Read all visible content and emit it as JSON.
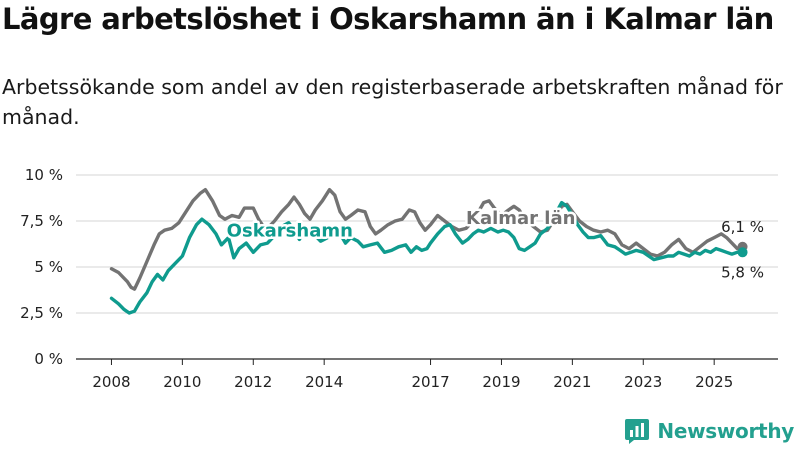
{
  "header": {
    "title": "Lägre arbetslöshet i Oskarshamn än i Kalmar län",
    "subtitle": "Arbetssökande som andel av den registerbaserade arbetskraften månad för månad."
  },
  "brand": {
    "name": "Newsworthy",
    "icon": "bar-chart-icon",
    "color": "#23a08f"
  },
  "chart_data": {
    "type": "line",
    "title": "Lägre arbetslöshet i Oskarshamn än i Kalmar län",
    "subtitle": "Arbetssökande som andel av den registerbaserade arbetskraften månad för månad.",
    "xlabel": "",
    "ylabel": "",
    "ylim": [
      0,
      10
    ],
    "xlim": [
      2007.0,
      2026.8
    ],
    "yticks": [
      0,
      2.5,
      5,
      7.5,
      10
    ],
    "ytick_labels": [
      "0 %",
      "2,5 %",
      "5 %",
      "7,5 %",
      "10 %"
    ],
    "xticks": [
      2008,
      2010,
      2012,
      2014,
      2017,
      2019,
      2021,
      2023,
      2025
    ],
    "xtick_labels": [
      "2008",
      "2010",
      "2012",
      "2014",
      "2017",
      "2019",
      "2021",
      "2023",
      "2025"
    ],
    "grid": true,
    "series": [
      {
        "name": "Kalmar län",
        "color": "#737373",
        "end_label": "6,1 %",
        "points": [
          [
            2008.0,
            4.9
          ],
          [
            2008.2,
            4.7
          ],
          [
            2008.45,
            4.2
          ],
          [
            2008.55,
            3.9
          ],
          [
            2008.65,
            3.8
          ],
          [
            2008.8,
            4.4
          ],
          [
            2009.0,
            5.3
          ],
          [
            2009.2,
            6.2
          ],
          [
            2009.35,
            6.8
          ],
          [
            2009.5,
            7.0
          ],
          [
            2009.7,
            7.1
          ],
          [
            2009.9,
            7.4
          ],
          [
            2010.1,
            8.0
          ],
          [
            2010.3,
            8.6
          ],
          [
            2010.5,
            9.0
          ],
          [
            2010.65,
            9.2
          ],
          [
            2010.85,
            8.6
          ],
          [
            2011.05,
            7.8
          ],
          [
            2011.2,
            7.6
          ],
          [
            2011.4,
            7.8
          ],
          [
            2011.6,
            7.7
          ],
          [
            2011.75,
            8.2
          ],
          [
            2012.0,
            8.2
          ],
          [
            2012.15,
            7.6
          ],
          [
            2012.35,
            7.0
          ],
          [
            2012.6,
            7.5
          ],
          [
            2012.8,
            8.0
          ],
          [
            2013.0,
            8.4
          ],
          [
            2013.15,
            8.8
          ],
          [
            2013.3,
            8.4
          ],
          [
            2013.45,
            7.9
          ],
          [
            2013.6,
            7.6
          ],
          [
            2013.75,
            8.1
          ],
          [
            2013.95,
            8.6
          ],
          [
            2014.15,
            9.2
          ],
          [
            2014.3,
            8.9
          ],
          [
            2014.45,
            8.0
          ],
          [
            2014.6,
            7.6
          ],
          [
            2014.75,
            7.8
          ],
          [
            2014.95,
            8.1
          ],
          [
            2015.15,
            8.0
          ],
          [
            2015.3,
            7.2
          ],
          [
            2015.45,
            6.8
          ],
          [
            2015.6,
            7.0
          ],
          [
            2015.8,
            7.3
          ],
          [
            2016.0,
            7.5
          ],
          [
            2016.2,
            7.6
          ],
          [
            2016.4,
            8.1
          ],
          [
            2016.55,
            8.0
          ],
          [
            2016.7,
            7.4
          ],
          [
            2016.85,
            7.0
          ],
          [
            2017.0,
            7.3
          ],
          [
            2017.2,
            7.8
          ],
          [
            2017.4,
            7.5
          ],
          [
            2017.6,
            7.2
          ],
          [
            2017.8,
            7.0
          ],
          [
            2018.0,
            7.1
          ],
          [
            2018.2,
            7.5
          ],
          [
            2018.35,
            8.0
          ],
          [
            2018.5,
            8.5
          ],
          [
            2018.65,
            8.6
          ],
          [
            2018.8,
            8.2
          ],
          [
            2019.0,
            7.8
          ],
          [
            2019.2,
            8.1
          ],
          [
            2019.35,
            8.3
          ],
          [
            2019.5,
            8.1
          ],
          [
            2019.7,
            7.5
          ],
          [
            2019.9,
            7.2
          ],
          [
            2020.1,
            6.9
          ],
          [
            2020.3,
            7.0
          ],
          [
            2020.5,
            7.6
          ],
          [
            2020.7,
            8.3
          ],
          [
            2020.85,
            8.4
          ],
          [
            2021.0,
            8.0
          ],
          [
            2021.2,
            7.5
          ],
          [
            2021.4,
            7.2
          ],
          [
            2021.6,
            7.0
          ],
          [
            2021.8,
            6.9
          ],
          [
            2022.0,
            7.0
          ],
          [
            2022.2,
            6.8
          ],
          [
            2022.4,
            6.2
          ],
          [
            2022.6,
            6.0
          ],
          [
            2022.8,
            6.3
          ],
          [
            2023.0,
            6.0
          ],
          [
            2023.2,
            5.7
          ],
          [
            2023.4,
            5.6
          ],
          [
            2023.6,
            5.8
          ],
          [
            2023.8,
            6.2
          ],
          [
            2024.0,
            6.5
          ],
          [
            2024.2,
            6.0
          ],
          [
            2024.4,
            5.8
          ],
          [
            2024.6,
            6.1
          ],
          [
            2024.8,
            6.4
          ],
          [
            2025.0,
            6.6
          ],
          [
            2025.2,
            6.8
          ],
          [
            2025.35,
            6.6
          ],
          [
            2025.5,
            6.3
          ],
          [
            2025.65,
            6.0
          ],
          [
            2025.8,
            6.1
          ]
        ]
      },
      {
        "name": "Oskarshamn",
        "color": "#0f9b8e",
        "end_label": "5,8 %",
        "points": [
          [
            2008.0,
            3.3
          ],
          [
            2008.2,
            3.0
          ],
          [
            2008.35,
            2.7
          ],
          [
            2008.5,
            2.5
          ],
          [
            2008.65,
            2.6
          ],
          [
            2008.8,
            3.1
          ],
          [
            2009.0,
            3.6
          ],
          [
            2009.15,
            4.2
          ],
          [
            2009.3,
            4.6
          ],
          [
            2009.45,
            4.3
          ],
          [
            2009.6,
            4.8
          ],
          [
            2009.8,
            5.2
          ],
          [
            2010.0,
            5.6
          ],
          [
            2010.2,
            6.6
          ],
          [
            2010.4,
            7.3
          ],
          [
            2010.55,
            7.6
          ],
          [
            2010.75,
            7.3
          ],
          [
            2010.95,
            6.8
          ],
          [
            2011.1,
            6.2
          ],
          [
            2011.3,
            6.6
          ],
          [
            2011.45,
            5.5
          ],
          [
            2011.6,
            6.0
          ],
          [
            2011.8,
            6.3
          ],
          [
            2012.0,
            5.8
          ],
          [
            2012.2,
            6.2
          ],
          [
            2012.4,
            6.3
          ],
          [
            2012.6,
            6.7
          ],
          [
            2012.8,
            7.2
          ],
          [
            2013.0,
            7.4
          ],
          [
            2013.15,
            7.0
          ],
          [
            2013.3,
            6.5
          ],
          [
            2013.45,
            7.0
          ],
          [
            2013.6,
            7.1
          ],
          [
            2013.75,
            6.7
          ],
          [
            2013.9,
            6.4
          ],
          [
            2014.1,
            6.6
          ],
          [
            2014.25,
            7.0
          ],
          [
            2014.45,
            6.8
          ],
          [
            2014.6,
            6.3
          ],
          [
            2014.75,
            6.6
          ],
          [
            2014.95,
            6.4
          ],
          [
            2015.1,
            6.1
          ],
          [
            2015.3,
            6.2
          ],
          [
            2015.5,
            6.3
          ],
          [
            2015.7,
            5.8
          ],
          [
            2015.9,
            5.9
          ],
          [
            2016.1,
            6.1
          ],
          [
            2016.3,
            6.2
          ],
          [
            2016.45,
            5.8
          ],
          [
            2016.6,
            6.1
          ],
          [
            2016.75,
            5.9
          ],
          [
            2016.9,
            6.0
          ],
          [
            2017.0,
            6.3
          ],
          [
            2017.2,
            6.8
          ],
          [
            2017.4,
            7.2
          ],
          [
            2017.55,
            7.3
          ],
          [
            2017.7,
            6.8
          ],
          [
            2017.9,
            6.3
          ],
          [
            2018.05,
            6.5
          ],
          [
            2018.2,
            6.8
          ],
          [
            2018.35,
            7.0
          ],
          [
            2018.5,
            6.9
          ],
          [
            2018.7,
            7.1
          ],
          [
            2018.9,
            6.9
          ],
          [
            2019.05,
            7.0
          ],
          [
            2019.2,
            6.9
          ],
          [
            2019.35,
            6.6
          ],
          [
            2019.5,
            6.0
          ],
          [
            2019.65,
            5.9
          ],
          [
            2019.8,
            6.1
          ],
          [
            2019.95,
            6.3
          ],
          [
            2020.1,
            6.8
          ],
          [
            2020.3,
            7.1
          ],
          [
            2020.5,
            7.8
          ],
          [
            2020.7,
            8.5
          ],
          [
            2020.85,
            8.3
          ],
          [
            2021.0,
            7.8
          ],
          [
            2021.15,
            7.3
          ],
          [
            2021.3,
            6.9
          ],
          [
            2021.45,
            6.6
          ],
          [
            2021.6,
            6.6
          ],
          [
            2021.8,
            6.7
          ],
          [
            2022.0,
            6.2
          ],
          [
            2022.2,
            6.1
          ],
          [
            2022.35,
            5.9
          ],
          [
            2022.5,
            5.7
          ],
          [
            2022.65,
            5.8
          ],
          [
            2022.8,
            5.9
          ],
          [
            2023.0,
            5.8
          ],
          [
            2023.15,
            5.6
          ],
          [
            2023.3,
            5.4
          ],
          [
            2023.5,
            5.5
          ],
          [
            2023.7,
            5.6
          ],
          [
            2023.85,
            5.6
          ],
          [
            2024.0,
            5.8
          ],
          [
            2024.15,
            5.7
          ],
          [
            2024.3,
            5.6
          ],
          [
            2024.45,
            5.8
          ],
          [
            2024.6,
            5.7
          ],
          [
            2024.75,
            5.9
          ],
          [
            2024.9,
            5.8
          ],
          [
            2025.05,
            6.0
          ],
          [
            2025.2,
            5.9
          ],
          [
            2025.35,
            5.8
          ],
          [
            2025.5,
            5.7
          ],
          [
            2025.65,
            5.8
          ],
          [
            2025.8,
            5.8
          ]
        ]
      }
    ]
  }
}
